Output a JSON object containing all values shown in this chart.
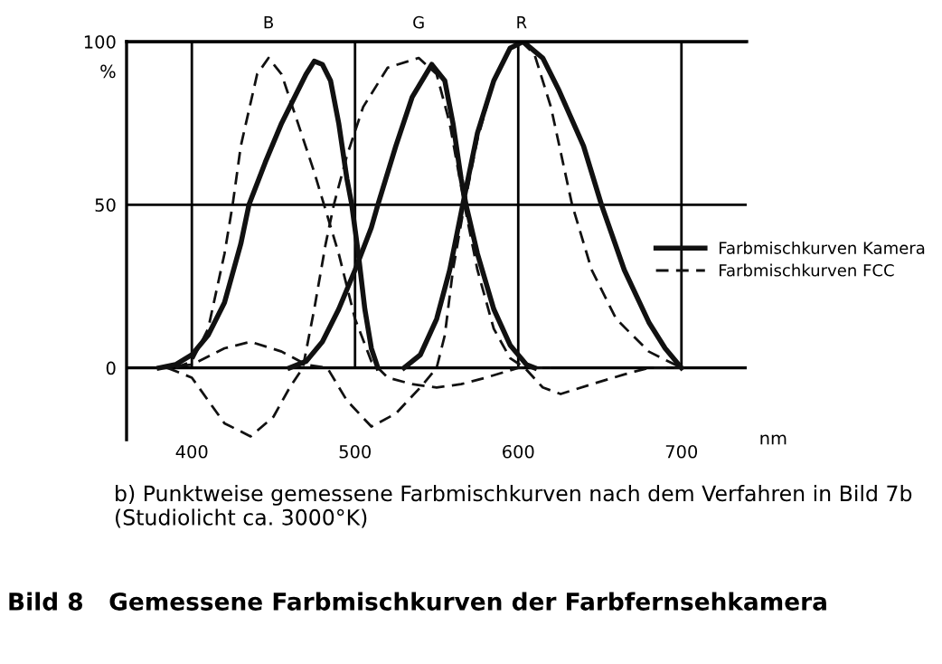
{
  "chart_data": {
    "type": "line",
    "title": "Bild 8   Gemessene Farbmischkurven der Farbfernsehkamera",
    "xlabel": "nm",
    "ylabel": "%",
    "xlim": [
      360,
      740
    ],
    "ylim": [
      -22,
      100
    ],
    "xticks": [
      400,
      500,
      600,
      700
    ],
    "yticks": [
      0,
      50,
      100
    ],
    "grid": true,
    "legend": "right",
    "marker": "none",
    "series": [
      {
        "name": "Farbmischkurven Kamera",
        "color": "#111111",
        "line_style": "solid",
        "x": [
          380,
          390,
          400,
          410,
          420,
          430,
          435,
          445,
          455,
          465,
          470,
          475,
          480,
          485,
          490,
          495,
          498,
          502,
          506,
          510,
          514
        ],
        "values": [
          0,
          1,
          4,
          10,
          20,
          38,
          50,
          63,
          75,
          85,
          90,
          94,
          93,
          88,
          75,
          58,
          50,
          35,
          18,
          6,
          0
        ]
      },
      {
        "color": "#111111",
        "line_style": "solid",
        "x": [
          460,
          470,
          480,
          490,
          500,
          510,
          514,
          525,
          535,
          547,
          555,
          560,
          565,
          568,
          575,
          585,
          595,
          605,
          610
        ],
        "values": [
          0,
          2,
          8,
          18,
          30,
          43,
          50,
          68,
          83,
          93,
          88,
          75,
          58,
          50,
          35,
          18,
          7,
          1,
          0
        ]
      },
      {
        "color": "#111111",
        "line_style": "solid",
        "x": [
          530,
          540,
          550,
          558,
          566,
          575,
          585,
          595,
          603,
          615,
          625,
          640,
          651,
          665,
          680,
          690,
          700
        ],
        "values": [
          0,
          4,
          15,
          30,
          50,
          72,
          88,
          98,
          100,
          95,
          85,
          68,
          50,
          30,
          14,
          6,
          0
        ]
      },
      {
        "name": "Farbmischkurven FCC",
        "color": "#111111",
        "line_style": "dashed",
        "x": [
          390,
          400,
          410,
          420,
          425,
          430,
          440,
          447,
          455,
          465,
          475,
          481,
          490,
          500,
          510,
          520,
          535,
          550,
          565,
          580,
          600,
          620
        ],
        "values": [
          0,
          2,
          12,
          35,
          50,
          68,
          90,
          95,
          90,
          75,
          60,
          50,
          35,
          15,
          2,
          -3,
          -5,
          -6,
          -5,
          -3,
          0,
          0
        ]
      },
      {
        "color": "#111111",
        "line_style": "dashed",
        "x": [
          385,
          400,
          410,
          420,
          436,
          450,
          460,
          468,
          475,
          482,
          487,
          495,
          505,
          520,
          539,
          550,
          558,
          567,
          575,
          585,
          595,
          604,
          615,
          626,
          645,
          665,
          680,
          700
        ],
        "values": [
          0,
          -3,
          -10,
          -17,
          -21,
          -15,
          -6,
          0,
          18,
          38,
          50,
          65,
          80,
          92,
          95,
          90,
          75,
          50,
          30,
          12,
          3,
          0,
          -6,
          -8,
          -5,
          -2,
          0,
          0
        ]
      },
      {
        "color": "#111111",
        "line_style": "dashed",
        "x": [
          380,
          400,
          420,
          436,
          455,
          470,
          483,
          495,
          510,
          525,
          540,
          550,
          555,
          560,
          567,
          575,
          585,
          595,
          602,
          610,
          620,
          633,
          645,
          660,
          680,
          700
        ],
        "values": [
          0,
          1,
          6,
          8,
          5,
          1,
          0,
          -10,
          -18,
          -14,
          -6,
          0,
          10,
          30,
          50,
          70,
          88,
          98,
          100,
          96,
          80,
          50,
          30,
          15,
          5,
          0
        ]
      }
    ],
    "annotations": [
      "B",
      "G",
      "R",
      "b) Punktweise gemessene Farbmischkurven nach dem Verfahren in Bild 7b (Studiolicht ca. 3000°K)"
    ]
  }
}
